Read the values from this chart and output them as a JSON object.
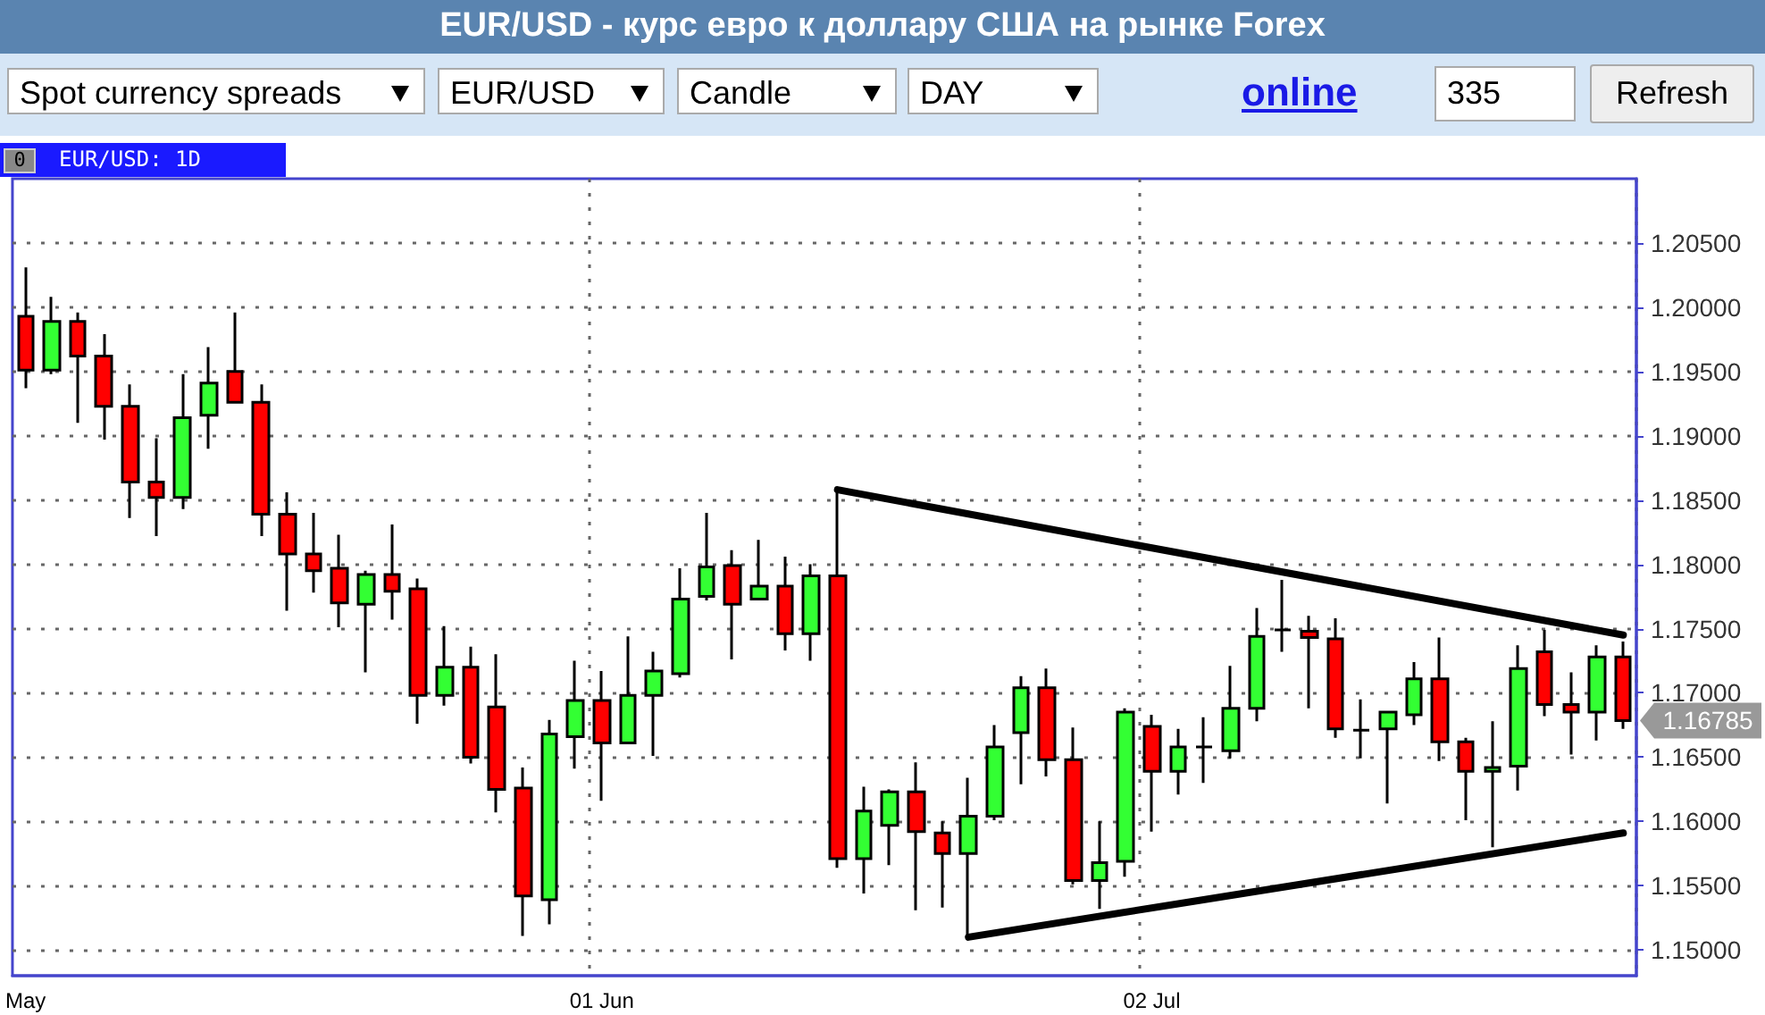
{
  "chart_data": {
    "type": "candlestick",
    "title": "EUR/USD - курс евро к доллару США на рынке Forex",
    "categories": [
      "May",
      null,
      null,
      null,
      null,
      null,
      null,
      null,
      null,
      null,
      null,
      null,
      null,
      null,
      null,
      null,
      null,
      null,
      null,
      null,
      null,
      null,
      "01 Jun",
      null,
      null,
      null,
      null,
      null,
      null,
      null,
      null,
      null,
      null,
      null,
      null,
      null,
      null,
      null,
      null,
      null,
      null,
      null,
      null,
      "02 Jul",
      null,
      null,
      null,
      null,
      null,
      null,
      null,
      null,
      null,
      null,
      null,
      null,
      null,
      null,
      null,
      null,
      null,
      null
    ],
    "ohlc": [
      [
        1.1993,
        1.2031,
        1.1937,
        1.1951
      ],
      [
        1.1951,
        1.2008,
        1.1948,
        1.1989
      ],
      [
        1.1989,
        1.1996,
        1.191,
        1.1962
      ],
      [
        1.1962,
        1.1979,
        1.1897,
        1.1923
      ],
      [
        1.1923,
        1.194,
        1.1836,
        1.1864
      ],
      [
        1.1864,
        1.1898,
        1.1822,
        1.1852
      ],
      [
        1.1852,
        1.1948,
        1.1843,
        1.1914
      ],
      [
        1.1916,
        1.1969,
        1.189,
        1.1941
      ],
      [
        1.195,
        1.1996,
        1.1926,
        1.1926
      ],
      [
        1.1926,
        1.194,
        1.1822,
        1.1839
      ],
      [
        1.1839,
        1.1856,
        1.1764,
        1.1808
      ],
      [
        1.1808,
        1.184,
        1.1778,
        1.1795
      ],
      [
        1.1797,
        1.1823,
        1.1751,
        1.177
      ],
      [
        1.1769,
        1.1795,
        1.1716,
        1.1792
      ],
      [
        1.1792,
        1.1831,
        1.1757,
        1.1779
      ],
      [
        1.1781,
        1.1789,
        1.1676,
        1.1698
      ],
      [
        1.1698,
        1.1752,
        1.169,
        1.172
      ],
      [
        1.172,
        1.1736,
        1.1645,
        1.165
      ],
      [
        1.1689,
        1.173,
        1.1607,
        1.1625
      ],
      [
        1.1626,
        1.1642,
        1.1511,
        1.1542
      ],
      [
        1.1539,
        1.1679,
        1.152,
        1.1668
      ],
      [
        1.1666,
        1.1725,
        1.1641,
        1.1694
      ],
      [
        1.1694,
        1.1717,
        1.1616,
        1.1661
      ],
      [
        1.1661,
        1.1744,
        1.1661,
        1.1698
      ],
      [
        1.1698,
        1.1732,
        1.1651,
        1.1717
      ],
      [
        1.1715,
        1.1797,
        1.1712,
        1.1773
      ],
      [
        1.1775,
        1.184,
        1.1772,
        1.1798
      ],
      [
        1.1799,
        1.1811,
        1.1726,
        1.1769
      ],
      [
        1.1773,
        1.1819,
        1.1773,
        1.1783
      ],
      [
        1.1783,
        1.1806,
        1.1733,
        1.1746
      ],
      [
        1.1746,
        1.18,
        1.1725,
        1.1791
      ],
      [
        1.1791,
        1.1858,
        1.1564,
        1.1571
      ],
      [
        1.1571,
        1.1627,
        1.1544,
        1.1608
      ],
      [
        1.1597,
        1.1625,
        1.1566,
        1.1623
      ],
      [
        1.1623,
        1.1646,
        1.1531,
        1.1592
      ],
      [
        1.1591,
        1.16,
        1.1533,
        1.1575
      ],
      [
        1.1575,
        1.1634,
        1.151,
        1.1604
      ],
      [
        1.1604,
        1.1675,
        1.1601,
        1.1658
      ],
      [
        1.1669,
        1.1713,
        1.1629,
        1.1704
      ],
      [
        1.1704,
        1.1719,
        1.1635,
        1.1648
      ],
      [
        1.1648,
        1.1673,
        1.1551,
        1.1554
      ],
      [
        1.1554,
        1.16,
        1.1532,
        1.1568
      ],
      [
        1.1569,
        1.1688,
        1.1557,
        1.1685
      ],
      [
        1.1674,
        1.1683,
        1.1592,
        1.1639
      ],
      [
        1.1639,
        1.1672,
        1.1621,
        1.1658
      ],
      [
        1.1658,
        1.1681,
        1.163,
        1.1658
      ],
      [
        1.1655,
        1.1721,
        1.1649,
        1.1688
      ],
      [
        1.1688,
        1.1766,
        1.1678,
        1.1744
      ],
      [
        1.1749,
        1.1788,
        1.1732,
        1.1749
      ],
      [
        1.1748,
        1.176,
        1.1688,
        1.1743
      ],
      [
        1.1742,
        1.1758,
        1.1665,
        1.1672
      ],
      [
        1.1671,
        1.1695,
        1.1649,
        1.1671
      ],
      [
        1.1672,
        1.1686,
        1.1614,
        1.1685
      ],
      [
        1.1683,
        1.1724,
        1.1675,
        1.1711
      ],
      [
        1.1711,
        1.1743,
        1.1647,
        1.1662
      ],
      [
        1.1662,
        1.1665,
        1.1601,
        1.1639
      ],
      [
        1.1639,
        1.1678,
        1.158,
        1.1642
      ],
      [
        1.1643,
        1.1737,
        1.1624,
        1.1719
      ],
      [
        1.1732,
        1.1749,
        1.1682,
        1.1691
      ],
      [
        1.1691,
        1.1716,
        1.1652,
        1.1685
      ],
      [
        1.1685,
        1.1737,
        1.1663,
        1.1728
      ],
      [
        1.1728,
        1.174,
        1.1672,
        1.16785
      ]
    ],
    "colors": [
      "#ff0000",
      "#33ff33",
      "#ff0000",
      "#ff0000",
      "#ff0000",
      "#ff0000",
      "#33ff33",
      "#33ff33",
      "#ff0000",
      "#ff0000",
      "#ff0000",
      "#ff0000",
      "#ff0000",
      "#33ff33",
      "#ff0000",
      "#ff0000",
      "#33ff33",
      "#ff0000",
      "#ff0000",
      "#ff0000",
      "#33ff33",
      "#33ff33",
      "#ff0000",
      "#33ff33",
      "#33ff33",
      "#33ff33",
      "#33ff33",
      "#ff0000",
      "#33ff33",
      "#ff0000",
      "#33ff33",
      "#ff0000",
      "#33ff33",
      "#33ff33",
      "#ff0000",
      "#ff0000",
      "#33ff33",
      "#33ff33",
      "#33ff33",
      "#ff0000",
      "#ff0000",
      "#33ff33",
      "#33ff33",
      "#ff0000",
      "#33ff33",
      "#000000",
      "#33ff33",
      "#33ff33",
      "#000000",
      "#ff0000",
      "#ff0000",
      "#000000",
      "#33ff33",
      "#33ff33",
      "#ff0000",
      "#ff0000",
      "#33ff33",
      "#33ff33",
      "#ff0000",
      "#ff0000",
      "#33ff33",
      "#ff0000"
    ],
    "series": [
      {
        "type": "line",
        "color": "#000000",
        "values": [
          null,
          null,
          null,
          null,
          null,
          null,
          null,
          null,
          null,
          null,
          null,
          null,
          null,
          null,
          null,
          null,
          null,
          null,
          null,
          null,
          null,
          null,
          null,
          null,
          null,
          null,
          null,
          null,
          null,
          null,
          null,
          1.1858,
          null,
          null,
          null,
          null,
          null,
          null,
          null,
          null,
          null,
          null,
          null,
          null,
          null,
          null,
          null,
          null,
          null,
          null,
          null,
          null,
          null,
          null,
          null,
          null,
          null,
          null,
          null,
          null,
          null,
          1.1745
        ]
      },
      {
        "type": "line",
        "color": "#000000",
        "values": [
          null,
          null,
          null,
          null,
          null,
          null,
          null,
          null,
          null,
          null,
          null,
          null,
          null,
          null,
          null,
          null,
          null,
          null,
          null,
          null,
          null,
          null,
          null,
          null,
          null,
          null,
          null,
          null,
          null,
          null,
          null,
          null,
          null,
          null,
          null,
          null,
          1.151,
          null,
          null,
          null,
          null,
          null,
          null,
          null,
          null,
          null,
          null,
          null,
          null,
          null,
          null,
          null,
          null,
          null,
          null,
          null,
          null,
          null,
          null,
          null,
          null,
          1.1591
        ]
      }
    ],
    "ylim": [
      1.148,
      1.21
    ],
    "yticks": [
      {
        "value": 1.15,
        "label": "1.15000"
      },
      {
        "value": 1.155,
        "label": "1.15500"
      },
      {
        "value": 1.16,
        "label": "1.16000"
      },
      {
        "value": 1.165,
        "label": "1.16500"
      },
      {
        "value": 1.17,
        "label": "1.17000"
      },
      {
        "value": 1.175,
        "label": "1.17500"
      },
      {
        "value": 1.18,
        "label": "1.18000"
      },
      {
        "value": 1.185,
        "label": "1.18500"
      },
      {
        "value": 1.19,
        "label": "1.19000"
      },
      {
        "value": 1.195,
        "label": "1.19500"
      },
      {
        "value": 1.2,
        "label": "1.20000"
      },
      {
        "value": 1.205,
        "label": "1.20500"
      }
    ],
    "grid": true,
    "marker": "none",
    "annotations": [
      "Spot currency spreads",
      "EUR/USD",
      "Candle",
      "DAY",
      "online",
      "335",
      "Refresh",
      "EUR/USD: 1D",
      "0",
      "1.16785"
    ]
  }
}
